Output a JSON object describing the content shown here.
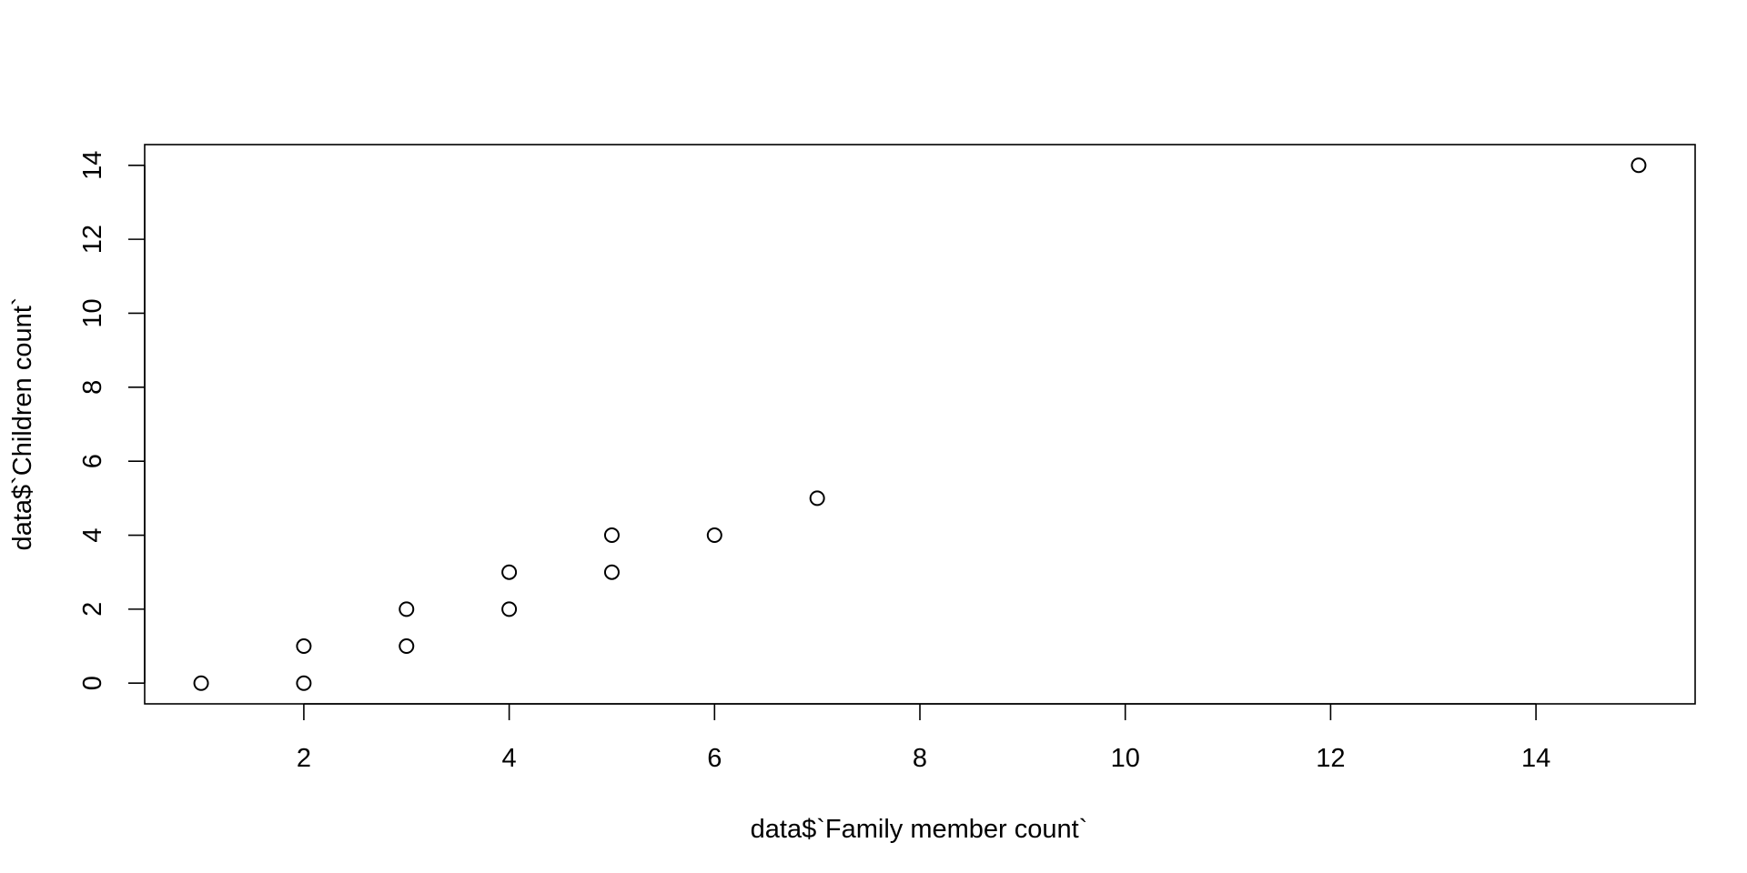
{
  "chart_data": {
    "type": "scatter",
    "title": "",
    "xlabel": "data$`Family member count`",
    "ylabel": "data$`Children count`",
    "xlim": [
      0.45,
      15.55
    ],
    "ylim": [
      -0.56,
      14.56
    ],
    "x_ticks": [
      2,
      4,
      6,
      8,
      10,
      12,
      14
    ],
    "y_ticks": [
      0,
      2,
      4,
      6,
      8,
      10,
      12,
      14
    ],
    "grid": false,
    "series": [
      {
        "marker": "open-circle",
        "color": "#000000",
        "points": [
          {
            "x": 1,
            "y": 0
          },
          {
            "x": 2,
            "y": 0
          },
          {
            "x": 2,
            "y": 1
          },
          {
            "x": 3,
            "y": 1
          },
          {
            "x": 3,
            "y": 2
          },
          {
            "x": 4,
            "y": 2
          },
          {
            "x": 4,
            "y": 3
          },
          {
            "x": 5,
            "y": 3
          },
          {
            "x": 5,
            "y": 4
          },
          {
            "x": 6,
            "y": 4
          },
          {
            "x": 7,
            "y": 5
          },
          {
            "x": 15,
            "y": 14
          }
        ]
      }
    ]
  }
}
